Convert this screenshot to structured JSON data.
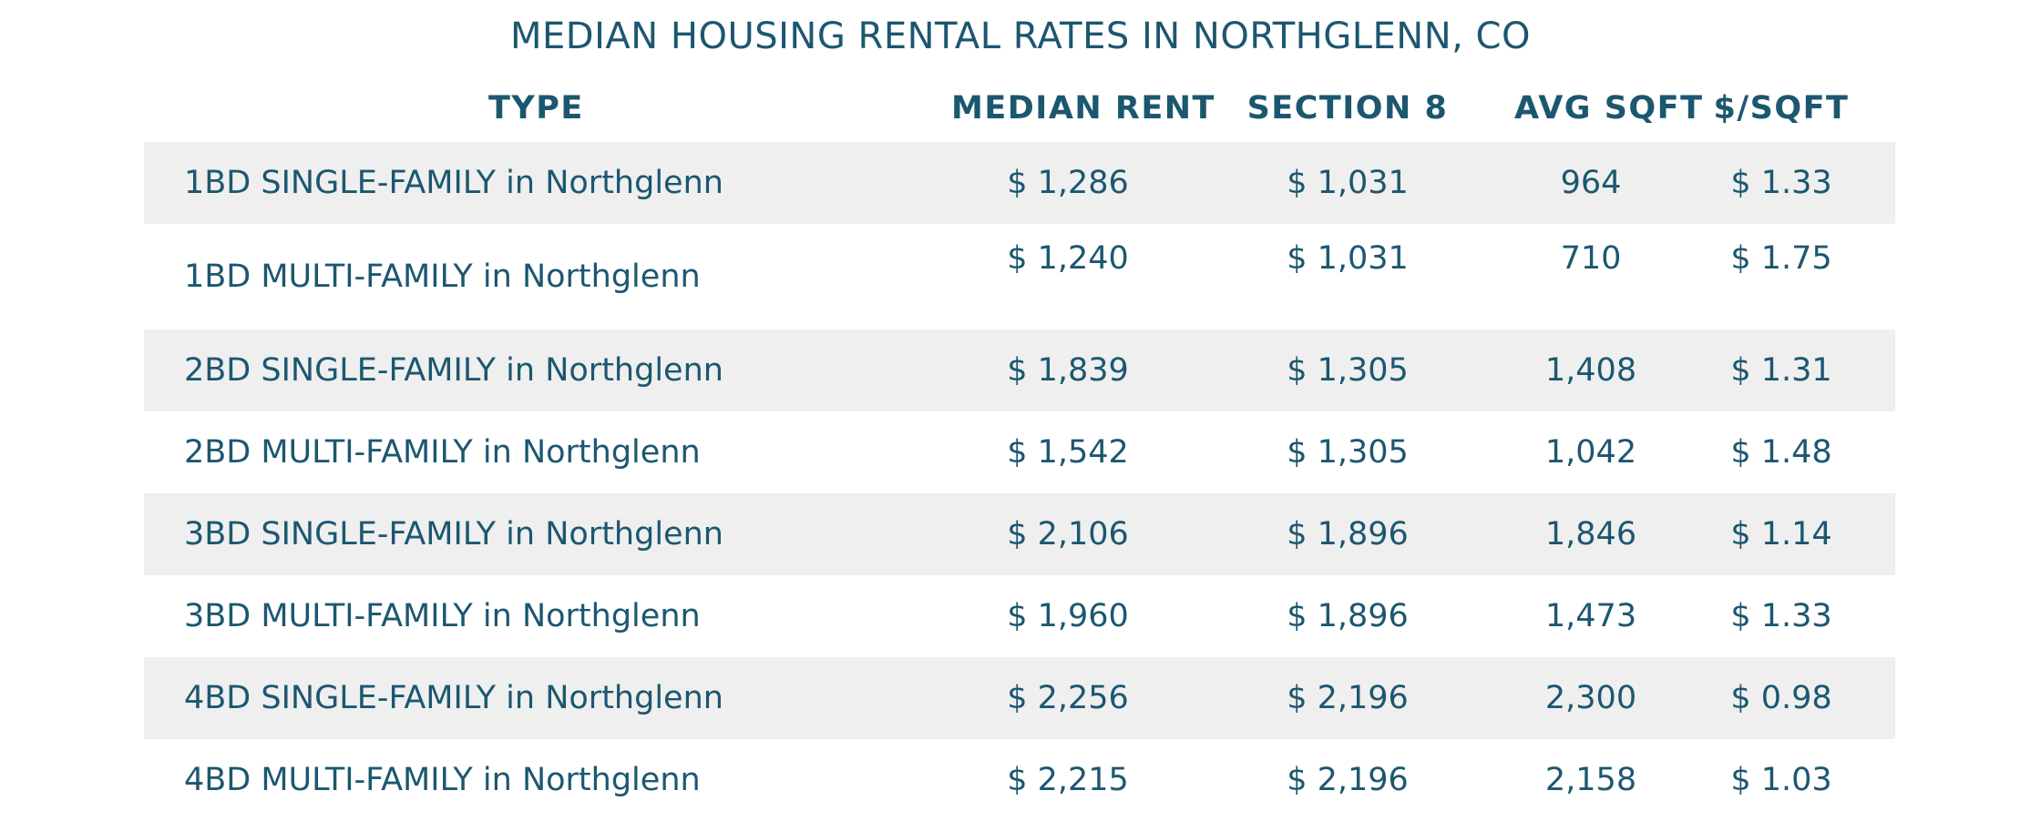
{
  "title": "MEDIAN HOUSING RENTAL RATES IN NORTHGLENN, CO",
  "columns": {
    "type": "TYPE",
    "median_rent": "MEDIAN RENT",
    "section8": "SECTION 8",
    "avg_sqft": "AVG SQFT",
    "price_per_sqft": "$/SQFT"
  },
  "rows": [
    {
      "type": "1BD SINGLE-FAMILY in Northglenn",
      "median_rent": "$ 1,286",
      "section8": "$ 1,031",
      "avg_sqft": "964",
      "price_per_sqft": "$ 1.33"
    },
    {
      "type": "1BD MULTI-FAMILY in Northglenn",
      "median_rent": "$ 1,240",
      "section8": "$ 1,031",
      "avg_sqft": "710",
      "price_per_sqft": "$ 1.75"
    },
    {
      "type": "2BD SINGLE-FAMILY in Northglenn",
      "median_rent": "$ 1,839",
      "section8": "$ 1,305",
      "avg_sqft": "1,408",
      "price_per_sqft": "$ 1.31"
    },
    {
      "type": "2BD MULTI-FAMILY in Northglenn",
      "median_rent": "$ 1,542",
      "section8": "$ 1,305",
      "avg_sqft": "1,042",
      "price_per_sqft": "$ 1.48"
    },
    {
      "type": "3BD SINGLE-FAMILY in Northglenn",
      "median_rent": "$ 2,106",
      "section8": "$ 1,896",
      "avg_sqft": "1,846",
      "price_per_sqft": "$ 1.14"
    },
    {
      "type": "3BD MULTI-FAMILY in Northglenn",
      "median_rent": "$ 1,960",
      "section8": "$ 1,896",
      "avg_sqft": "1,473",
      "price_per_sqft": "$ 1.33"
    },
    {
      "type": "4BD SINGLE-FAMILY in Northglenn",
      "median_rent": "$ 2,256",
      "section8": "$ 2,196",
      "avg_sqft": "2,300",
      "price_per_sqft": "$ 0.98"
    },
    {
      "type": "4BD MULTI-FAMILY in Northglenn",
      "median_rent": "$ 2,215",
      "section8": "$ 2,196",
      "avg_sqft": "2,158",
      "price_per_sqft": "$ 1.03"
    }
  ]
}
